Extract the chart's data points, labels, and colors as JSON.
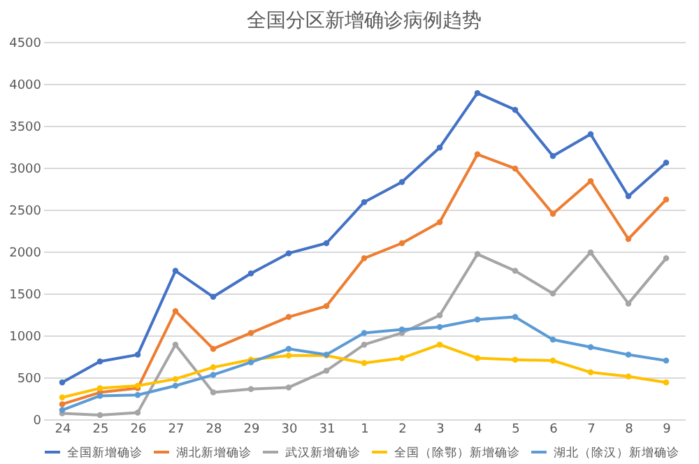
{
  "chart_data": {
    "type": "line",
    "title": "全国分区新增确诊病例趋势",
    "categories": [
      "24",
      "25",
      "26",
      "27",
      "28",
      "29",
      "30",
      "31",
      "1",
      "2",
      "3",
      "4",
      "5",
      "6",
      "7",
      "8",
      "9"
    ],
    "series": [
      {
        "name": "全国新增确诊",
        "color": "#4472c4",
        "values": [
          440,
          690,
          770,
          1770,
          1460,
          1740,
          1980,
          2100,
          2590,
          2830,
          3240,
          3890,
          3690,
          3140,
          3400,
          2660,
          3060
        ]
      },
      {
        "name": "湖北新增确诊",
        "color": "#ed7d31",
        "values": [
          180,
          320,
          370,
          1290,
          840,
          1030,
          1220,
          1350,
          1920,
          2100,
          2350,
          3160,
          2990,
          2450,
          2840,
          2150,
          2620
        ]
      },
      {
        "name": "武汉新增确诊",
        "color": "#a5a5a5",
        "values": [
          70,
          50,
          80,
          890,
          320,
          360,
          380,
          580,
          890,
          1030,
          1240,
          1970,
          1770,
          1500,
          1990,
          1380,
          1920
        ]
      },
      {
        "name": "全国（除鄂）新增确诊",
        "color": "#ffc000",
        "values": [
          260,
          370,
          400,
          480,
          620,
          710,
          760,
          760,
          670,
          730,
          890,
          730,
          710,
          700,
          560,
          510,
          440
        ]
      },
      {
        "name": "湖北（除汉）新增确诊",
        "color": "#5b9bd5",
        "values": [
          110,
          280,
          290,
          400,
          530,
          680,
          840,
          770,
          1030,
          1070,
          1100,
          1190,
          1220,
          950,
          860,
          770,
          700
        ]
      }
    ],
    "ylim": [
      0,
      4500
    ],
    "yticks": [
      0,
      500,
      1000,
      1500,
      2000,
      2500,
      3000,
      3500,
      4000,
      4500
    ],
    "grid": "y",
    "legend": "bottom",
    "marker": "circle",
    "line_style": "solid"
  }
}
